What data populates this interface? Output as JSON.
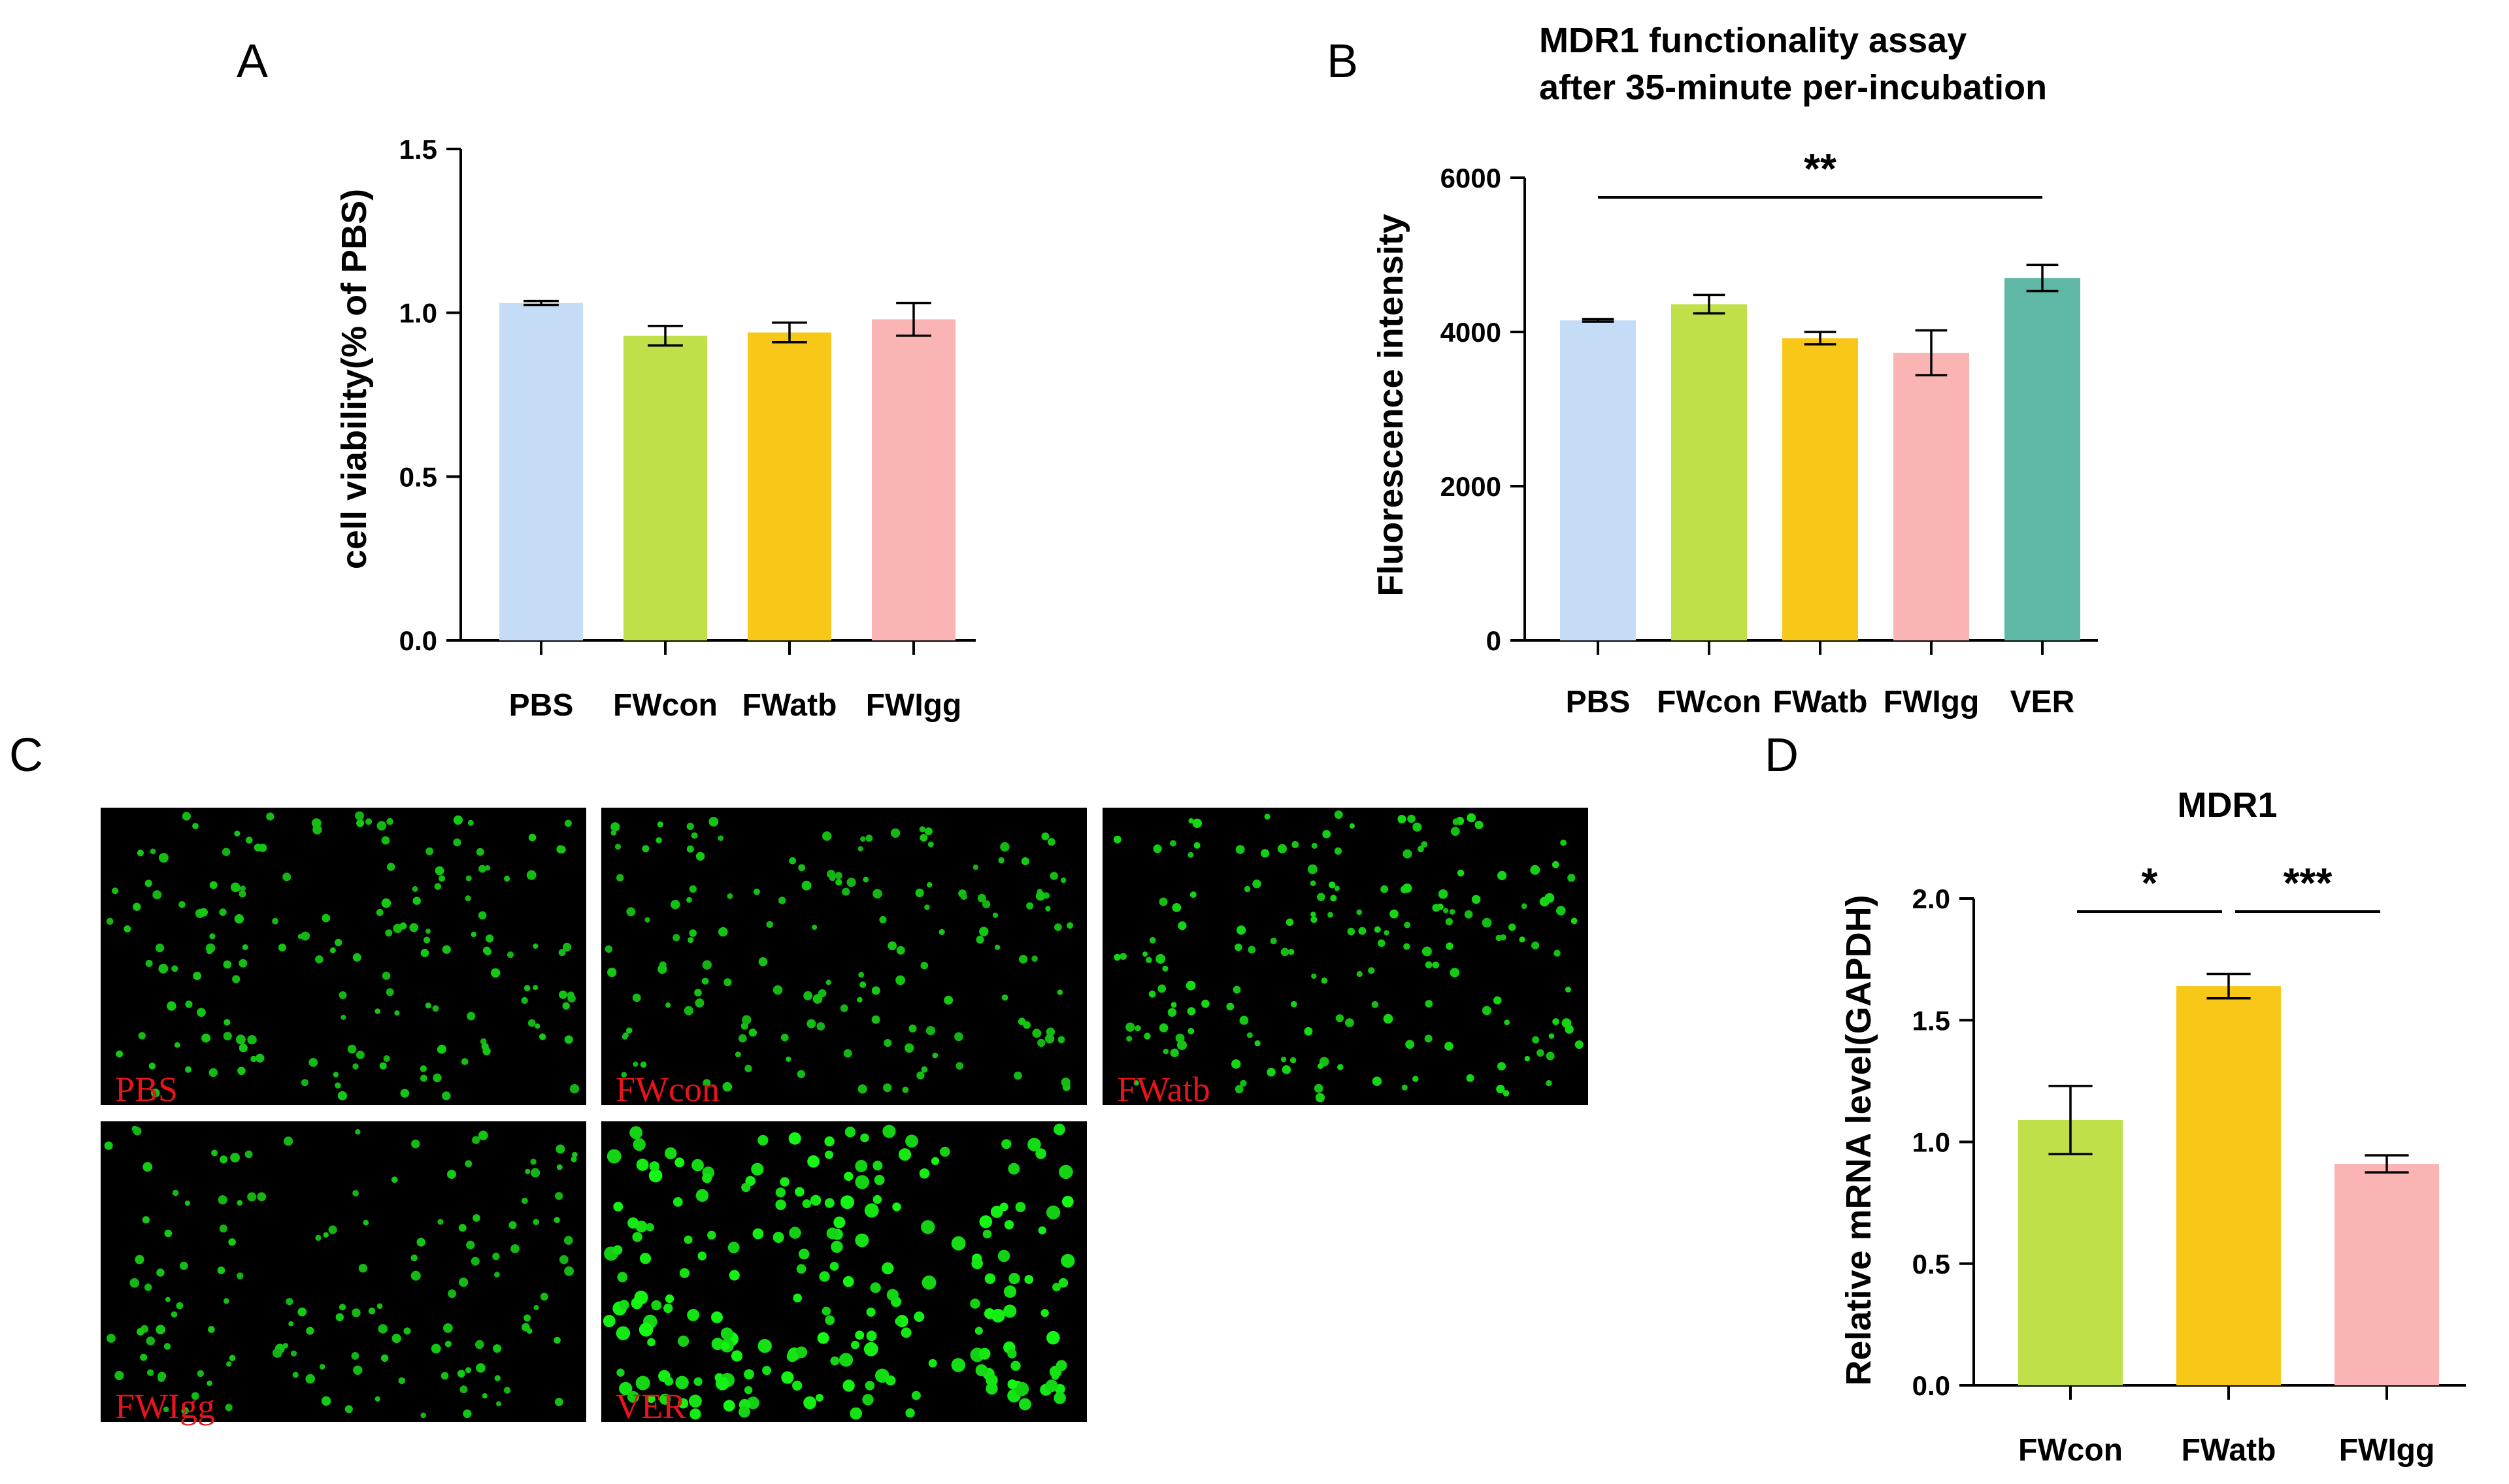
{
  "panels": {
    "A": "A",
    "B": "B",
    "C": "C",
    "D": "D"
  },
  "chart_data": [
    {
      "panel": "A",
      "type": "bar",
      "title": "",
      "xlabel": "",
      "ylabel": "cell viability(% of PBS)",
      "ylim": [
        0,
        1.5
      ],
      "yticks": [
        "0.0",
        "0.5",
        "1.0",
        "1.5"
      ],
      "categories": [
        "PBS",
        "FWcon",
        "FWatb",
        "FWIgg"
      ],
      "values": [
        1.03,
        0.93,
        0.94,
        0.98
      ],
      "errors": [
        0.006,
        0.03,
        0.03,
        0.05
      ],
      "colors": [
        "#c5dcf7",
        "#c0e04a",
        "#f8c818",
        "#fbb4b4"
      ],
      "grid": false,
      "significance": []
    },
    {
      "panel": "B",
      "type": "bar",
      "title": "MDR1 functionality assay\nafter 35-minute per-incubation",
      "xlabel": "",
      "ylabel": "Fluorescence intensity",
      "ylim": [
        0,
        6000
      ],
      "yticks": [
        "0",
        "2000",
        "4000",
        "6000"
      ],
      "categories": [
        "PBS",
        "FWcon",
        "FWatb",
        "FWIgg",
        "VER"
      ],
      "values": [
        4150,
        4360,
        3920,
        3730,
        4700
      ],
      "errors": [
        15,
        120,
        80,
        290,
        170
      ],
      "colors": [
        "#c5dcf7",
        "#c0e04a",
        "#f8c818",
        "#fbb4b4",
        "#5fb7a5"
      ],
      "grid": false,
      "significance": [
        {
          "from": 0,
          "to": 4,
          "label": "**"
        }
      ]
    },
    {
      "panel": "D",
      "type": "bar",
      "title": "MDR1",
      "xlabel": "",
      "ylabel": "Relative mRNA level(GAPDH)",
      "ylim": [
        0,
        2.0
      ],
      "yticks": [
        "0.0",
        "0.5",
        "1.0",
        "1.5",
        "2.0"
      ],
      "categories": [
        "FWcon",
        "FWatb",
        "FWIgg"
      ],
      "values": [
        1.09,
        1.64,
        0.91
      ],
      "errors": [
        0.14,
        0.05,
        0.035
      ],
      "colors": [
        "#c0e04a",
        "#f8c818",
        "#fbb4b4"
      ],
      "grid": false,
      "significance": [
        {
          "from": 0,
          "to": 1,
          "label": "*"
        },
        {
          "from": 1,
          "to": 2,
          "label": "***"
        }
      ]
    }
  ],
  "micrographs": [
    {
      "label": "PBS",
      "density": 160,
      "brightness": 0.55
    },
    {
      "label": "FWcon",
      "density": 150,
      "brightness": 0.55
    },
    {
      "label": "FWatb",
      "density": 170,
      "brightness": 0.7
    },
    {
      "label": "FWIgg",
      "density": 140,
      "brightness": 0.55
    },
    {
      "label": "VER",
      "density": 210,
      "brightness": 0.95
    }
  ]
}
